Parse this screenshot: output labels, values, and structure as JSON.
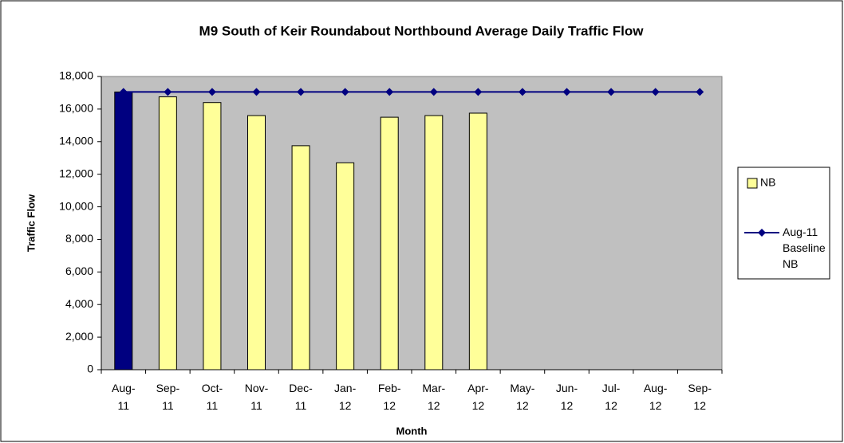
{
  "chart_data": {
    "type": "bar_line",
    "title": "M9 South of Keir Roundabout Northbound Average Daily Traffic Flow",
    "x_label": "Month",
    "y_label": "Traffic Flow",
    "categories": [
      "Aug-11",
      "Sep-11",
      "Oct-11",
      "Nov-11",
      "Dec-11",
      "Jan-12",
      "Feb-12",
      "Mar-12",
      "Apr-12",
      "May-12",
      "Jun-12",
      "Jul-12",
      "Aug-12",
      "Sep-12"
    ],
    "series": [
      {
        "name": "NB",
        "type": "bar",
        "color": "#ffff99",
        "colors": [
          "#000080",
          "#ffff99",
          "#ffff99",
          "#ffff99",
          "#ffff99",
          "#ffff99",
          "#ffff99",
          "#ffff99",
          "#ffff99",
          "#ffff99",
          "#ffff99",
          "#ffff99",
          "#ffff99",
          "#ffff99"
        ],
        "values": [
          17050,
          16750,
          16400,
          15600,
          13750,
          12700,
          15500,
          15600,
          15750,
          null,
          null,
          null,
          null,
          null
        ]
      },
      {
        "name": "Aug-11 Baseline NB",
        "type": "line",
        "color": "#000080",
        "values": [
          17050,
          17050,
          17050,
          17050,
          17050,
          17050,
          17050,
          17050,
          17050,
          17050,
          17050,
          17050,
          17050,
          17050
        ]
      }
    ],
    "ylim": [
      0,
      18000
    ],
    "yticks": [
      0,
      {
        "value": 2000,
        "label": "2,000"
      },
      {
        "value": 4000,
        "label": "4,000"
      },
      {
        "value": 6000,
        "label": "6,000"
      },
      {
        "value": 8000,
        "label": "8,000"
      },
      {
        "value": 10000,
        "label": "10,000"
      },
      {
        "value": 12000,
        "label": "12,000"
      },
      {
        "value": 14000,
        "label": "14,000"
      },
      {
        "value": 16000,
        "label": "16,000"
      },
      {
        "value": 18000,
        "label": "18,000"
      }
    ],
    "grid": false,
    "legend": "right",
    "plot_background": "#c0c0c0"
  }
}
